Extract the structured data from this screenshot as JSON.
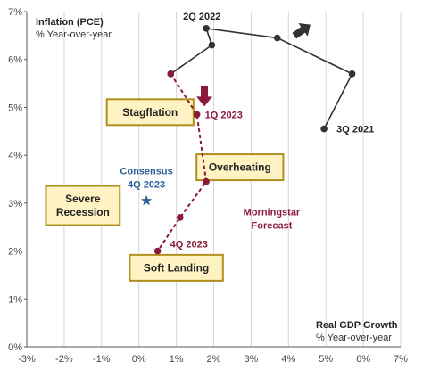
{
  "chart_data": {
    "type": "scatter",
    "xlim": [
      -3,
      7
    ],
    "ylim": [
      0,
      7
    ],
    "x_ticks": [
      "-3%",
      "-2%",
      "-1%",
      "0%",
      "1%",
      "2%",
      "3%",
      "4%",
      "5%",
      "6%",
      "7%"
    ],
    "y_ticks": [
      "0%",
      "1%",
      "2%",
      "3%",
      "4%",
      "5%",
      "6%",
      "7%"
    ],
    "x_title": "Real GDP Growth",
    "x_subtitle": "% Year-over-year",
    "y_title": "Inflation (PCE)",
    "y_subtitle": "% Year-over-year",
    "grid": "vertical",
    "series": [
      {
        "kind": "history",
        "color": "#333333",
        "points": [
          {
            "x": 4.95,
            "y": 4.55
          },
          {
            "x": 5.7,
            "y": 5.7
          },
          {
            "x": 3.7,
            "y": 6.45
          },
          {
            "x": 1.8,
            "y": 6.65
          },
          {
            "x": 1.95,
            "y": 6.3
          },
          {
            "x": 0.85,
            "y": 5.7
          }
        ]
      },
      {
        "kind": "forecast",
        "color": "#8b1a3a",
        "points": [
          {
            "x": 0.85,
            "y": 5.7
          },
          {
            "x": 1.55,
            "y": 4.85
          },
          {
            "x": 1.8,
            "y": 3.45
          },
          {
            "x": 1.1,
            "y": 2.7
          },
          {
            "x": 0.5,
            "y": 2.0
          }
        ]
      }
    ],
    "point_labels": [
      {
        "text": "3Q 2021",
        "x": 4.95,
        "y": 4.55
      },
      {
        "text": "2Q 2022",
        "x": 1.8,
        "y": 6.65
      },
      {
        "text": "1Q 2023",
        "x": 1.55,
        "y": 4.85
      },
      {
        "text": "4Q 2023",
        "x": 0.5,
        "y": 2.0
      }
    ],
    "forecast_label": [
      "Morningstar",
      "Forecast"
    ],
    "consensus": {
      "label": [
        "Consensus",
        "4Q 2023"
      ],
      "x": 0.2,
      "y": 3.05,
      "color": "#2d5f9a"
    },
    "regions": [
      {
        "lines": [
          "Stagflation"
        ],
        "x": 0.3,
        "y": 4.9
      },
      {
        "lines": [
          "Overheating"
        ],
        "x": 2.7,
        "y": 3.75
      },
      {
        "lines": [
          "Severe",
          "Recession"
        ],
        "x": -1.5,
        "y": 2.95
      },
      {
        "lines": [
          "Soft Landing"
        ],
        "x": 1.0,
        "y": 1.65
      }
    ],
    "region_colors": {
      "fill": "#fff3c4",
      "border": "#b08f1e"
    },
    "arrows": [
      {
        "kind": "history-direction",
        "x": 4.35,
        "y": 6.6,
        "color": "#333333"
      },
      {
        "kind": "current",
        "x": 1.75,
        "y": 5.15,
        "color": "#8b1a3a"
      }
    ]
  }
}
